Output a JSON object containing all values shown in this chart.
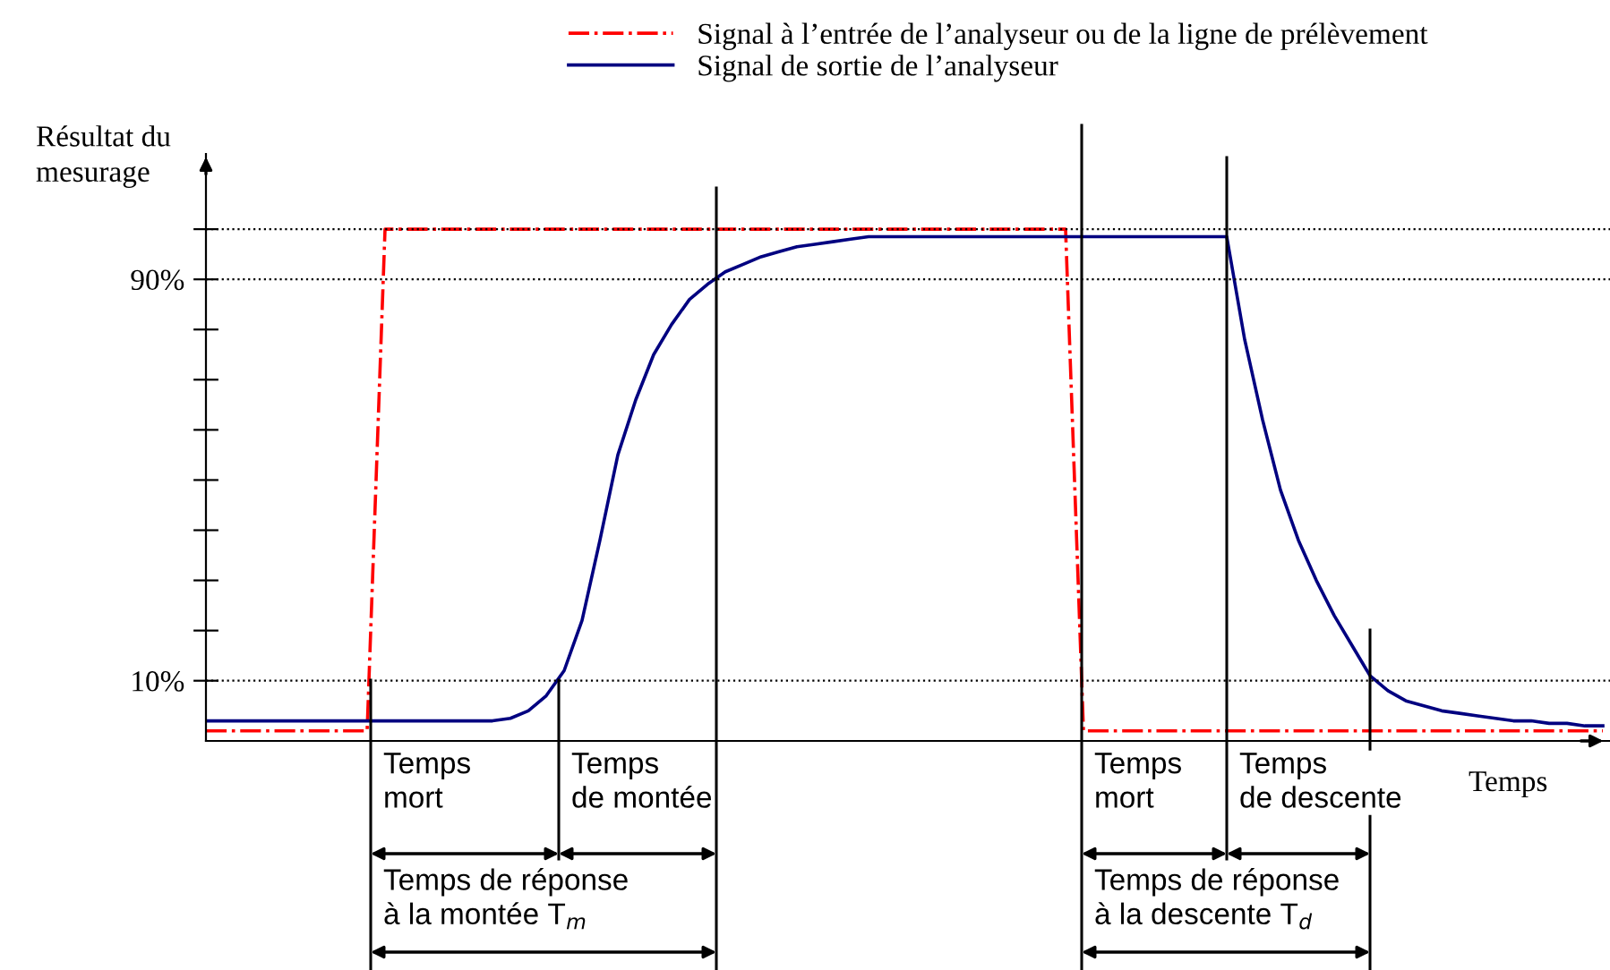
{
  "chart_data": {
    "type": "line",
    "ylabel": "Résultat du\nmesurage",
    "xlabel": "Temps",
    "categories": [
      null,
      null,
      null,
      null,
      null,
      null,
      null,
      null,
      null,
      null,
      null,
      null,
      null,
      null,
      null,
      null,
      null,
      null,
      null,
      null,
      null,
      null,
      null,
      null,
      null,
      null,
      null,
      null,
      null,
      null,
      null,
      null,
      null,
      null,
      null,
      null,
      null,
      null,
      null,
      null,
      null,
      null,
      null,
      null,
      null,
      null,
      null,
      null,
      null,
      null,
      null,
      null,
      null,
      null,
      null,
      null,
      null,
      null,
      null,
      null,
      null,
      null,
      null,
      null,
      null,
      null,
      null,
      null,
      null,
      null,
      null,
      null,
      null,
      null,
      null,
      null,
      null,
      null,
      null
    ],
    "series": [
      {
        "name": "Signal à l’entrée de l’analyseur ou de la ligne de prélèvement",
        "color": "#ff0000",
        "line_style": "dashdot",
        "values": [
          0,
          0,
          0,
          0,
          0,
          0,
          0,
          0,
          0,
          0,
          100,
          100,
          100,
          100,
          100,
          100,
          100,
          100,
          100,
          100,
          100,
          100,
          100,
          100,
          100,
          100,
          100,
          100,
          100,
          100,
          100,
          100,
          100,
          100,
          100,
          100,
          100,
          100,
          100,
          100,
          100,
          100,
          100,
          100,
          100,
          100,
          100,
          100,
          100,
          0,
          0,
          0,
          0,
          0,
          0,
          0,
          0,
          0,
          0,
          0,
          0,
          0,
          0,
          0,
          0,
          0,
          0,
          0,
          0,
          0,
          0,
          0,
          0,
          0,
          0,
          0,
          0,
          0,
          0
        ]
      },
      {
        "name": "Signal de sortie de l’analyseur",
        "color": "#000080",
        "line_style": "solid",
        "values": [
          2,
          2,
          2,
          2,
          2,
          2,
          2,
          2,
          2,
          2,
          2,
          2,
          2,
          2,
          2,
          2,
          2,
          2.5,
          4,
          7,
          12,
          22,
          38,
          55,
          66,
          75,
          81,
          86,
          89,
          91.5,
          93,
          94.5,
          95.5,
          96.5,
          97,
          97.5,
          98,
          98.5,
          98.5,
          98.5,
          98.5,
          98.5,
          98.5,
          98.5,
          98.5,
          98.5,
          98.5,
          98.5,
          98.5,
          98.5,
          98.5,
          98.5,
          98.5,
          98.5,
          98.5,
          98.5,
          98.5,
          98.5,
          78,
          62,
          48,
          38,
          30,
          23,
          17,
          11,
          8,
          6,
          5,
          4,
          3.5,
          3,
          2.5,
          2,
          2,
          1.5,
          1.5,
          1,
          1
        ]
      }
    ],
    "ylim": [
      -2,
      115
    ],
    "yticks": [
      {
        "value": 10,
        "label": "10%"
      },
      {
        "value": 20,
        "label": null
      },
      {
        "value": 30,
        "label": null
      },
      {
        "value": 40,
        "label": null
      },
      {
        "value": 50,
        "label": null
      },
      {
        "value": 60,
        "label": null
      },
      {
        "value": 70,
        "label": null
      },
      {
        "value": 80,
        "label": null
      },
      {
        "value": 90,
        "label": "90%"
      },
      {
        "value": 100,
        "label": null
      }
    ],
    "ref_lines": [
      {
        "axis": "y",
        "value": 100,
        "label": null,
        "color": "#000000",
        "line_style": "dotted"
      },
      {
        "axis": "y",
        "value": 90,
        "label": null,
        "color": "#000000",
        "line_style": "dotted"
      },
      {
        "axis": "y",
        "value": 10,
        "label": null,
        "color": "#000000",
        "line_style": "dotted"
      }
    ],
    "annotations": [
      "Temps\nmort",
      "Temps\nde montée",
      "Temps de réponse\nà la montée T$_{m}$",
      "Temps\nmort",
      "Temps\nde descente",
      "Temps de réponse\nà la descente T$_{d}$"
    ],
    "legend": "top",
    "grid": false,
    "marker": "none"
  }
}
